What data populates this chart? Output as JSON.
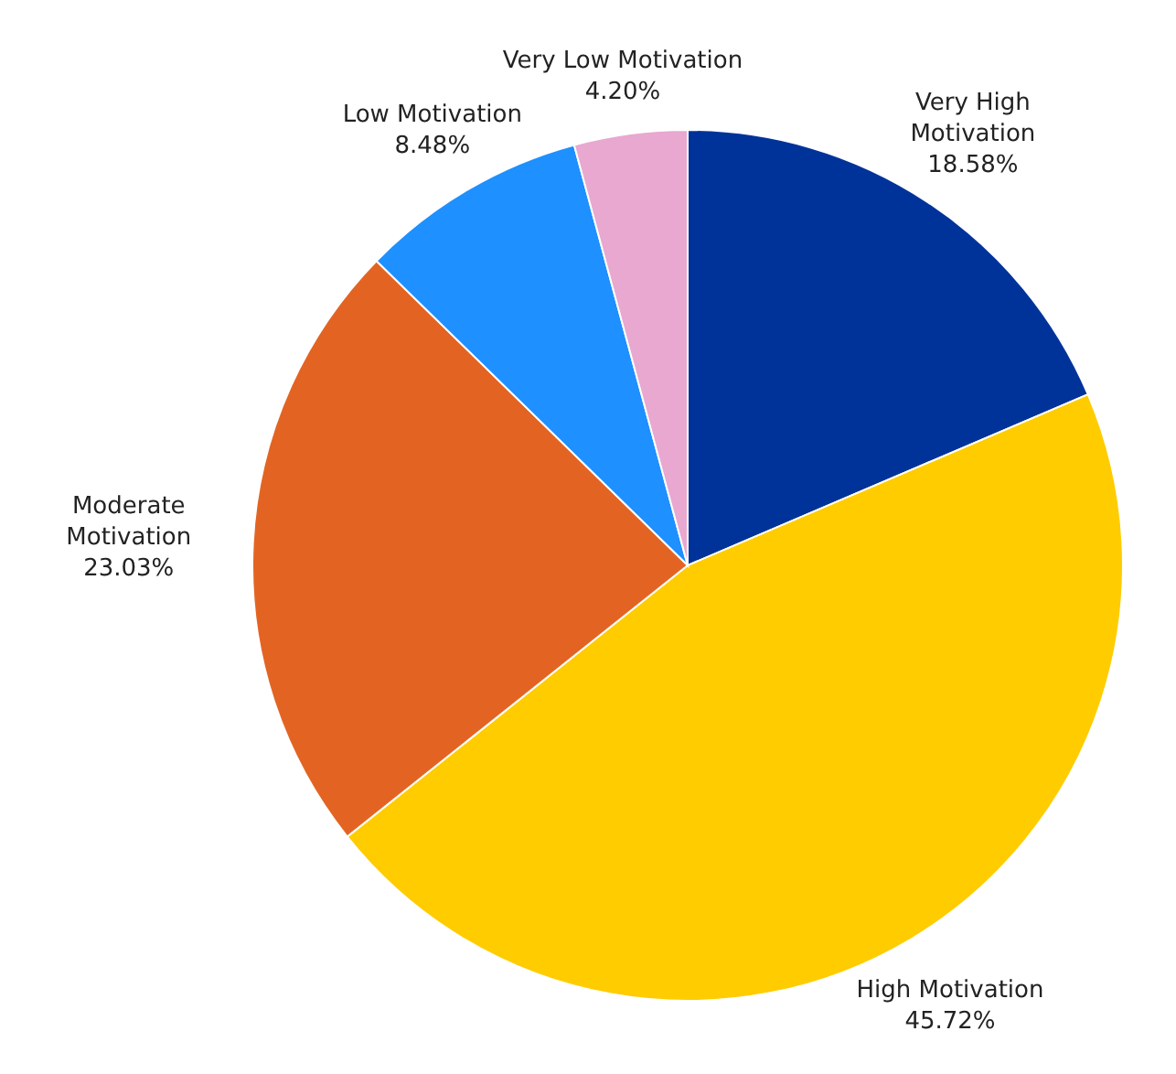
{
  "chart_data": {
    "type": "pie",
    "categories": [
      "Very High Motivation",
      "High Motivation",
      "Moderate Motivation",
      "Low Motivation",
      "Very Low Motivation"
    ],
    "values": [
      18.58,
      45.72,
      23.03,
      8.48,
      4.2
    ],
    "value_labels": [
      "18.58%",
      "45.72%",
      "23.03%",
      "8.48%",
      "4.20%"
    ],
    "colors": [
      "#003399",
      "#ffcc00",
      "#e36422",
      "#1e90ff",
      "#e8a8d0"
    ],
    "legend": false
  }
}
